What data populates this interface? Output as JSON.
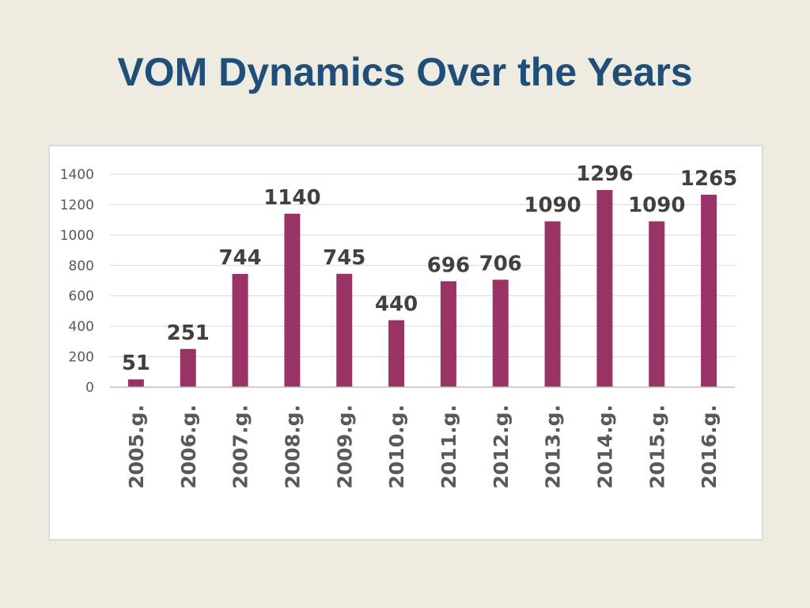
{
  "slide": {
    "title": "VOM Dynamics Over the Years"
  },
  "colors": {
    "background": "#eeebe1",
    "title": "#1f4e79",
    "bar": "#993366"
  },
  "chart_data": {
    "type": "bar",
    "title": "",
    "xlabel": "",
    "ylabel": "",
    "categories": [
      "2005.g.",
      "2006.g.",
      "2007.g.",
      "2008.g.",
      "2009.g.",
      "2010.g.",
      "2011.g.",
      "2012.g.",
      "2013.g.",
      "2014.g.",
      "2015.g.",
      "2016.g."
    ],
    "values": [
      51,
      251,
      744,
      1140,
      745,
      440,
      696,
      706,
      1090,
      1296,
      1090,
      1265
    ],
    "data_labels": [
      "51",
      "251",
      "744",
      "1140",
      "745",
      "440",
      "696",
      "706",
      "1090",
      "1296",
      "1090",
      "1265"
    ],
    "ylim": [
      0,
      1400
    ],
    "yticks": [
      "0",
      "200",
      "400",
      "600",
      "800",
      "1000",
      "1200",
      "1400"
    ],
    "grid": true,
    "legend": "none"
  }
}
